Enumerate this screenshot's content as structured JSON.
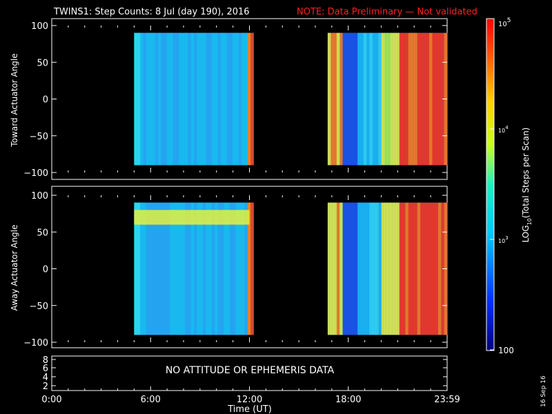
{
  "header": {
    "title": "TWINS1: Step Counts:  8 Jul (day 190), 2016",
    "note": "NOTE: Data Preliminary — Not validated"
  },
  "chart_data": [
    {
      "type": "heatmap",
      "ylabel": "Toward Actuator Angle",
      "ylim": [
        -100,
        100
      ],
      "yticks": [
        "100",
        "50",
        "0",
        "−50",
        "−100"
      ],
      "xlim_hours": [
        0,
        24
      ],
      "data_blocks": [
        {
          "start": "05:00",
          "end": "12:15",
          "angle_range": [
            -90,
            90
          ],
          "level": "low (blue-cyan)"
        },
        {
          "start": "16:45",
          "end": "24:00",
          "angle_range": [
            -90,
            90
          ],
          "level": "mixed, high after 21:00"
        }
      ]
    },
    {
      "type": "heatmap",
      "ylabel": "Away Actuator Angle",
      "ylim": [
        -100,
        100
      ],
      "yticks": [
        "100",
        "50",
        "0",
        "−50",
        "−100"
      ],
      "xlim_hours": [
        0,
        24
      ],
      "data_blocks": [
        {
          "start": "05:00",
          "end": "12:15",
          "angle_range": [
            -90,
            90
          ],
          "level": "low, yellow band near 70"
        },
        {
          "start": "16:45",
          "end": "24:00",
          "angle_range": [
            -90,
            90
          ],
          "level": "mixed, high after 21:00"
        }
      ]
    }
  ],
  "third_panel": {
    "yticks": [
      "8",
      "6",
      "4",
      "2"
    ],
    "message": "NO ATTITUDE OR EPHEMERIS DATA"
  },
  "xaxis": {
    "ticks": [
      "0:00",
      "6:00",
      "12:00",
      "18:00",
      "23:59"
    ],
    "label": "Time (UT)"
  },
  "colorbar": {
    "label": "LOG10(Total Steps per Scan)",
    "label_main": "LOG",
    "label_sub": "10",
    "label_rest": "(Total Steps per Scan)",
    "ticks": [
      "10^5",
      "10^4",
      "10^3",
      "100"
    ],
    "tick_top": "10",
    "tick_top_exp": "5",
    "tick_mid1": "10",
    "tick_mid1_exp": "4",
    "tick_mid2": "10",
    "tick_mid2_exp": "3",
    "tick_bottom": "100",
    "range": [
      100,
      100000
    ],
    "scale": "log"
  },
  "footer_date": "16 Sep 16"
}
